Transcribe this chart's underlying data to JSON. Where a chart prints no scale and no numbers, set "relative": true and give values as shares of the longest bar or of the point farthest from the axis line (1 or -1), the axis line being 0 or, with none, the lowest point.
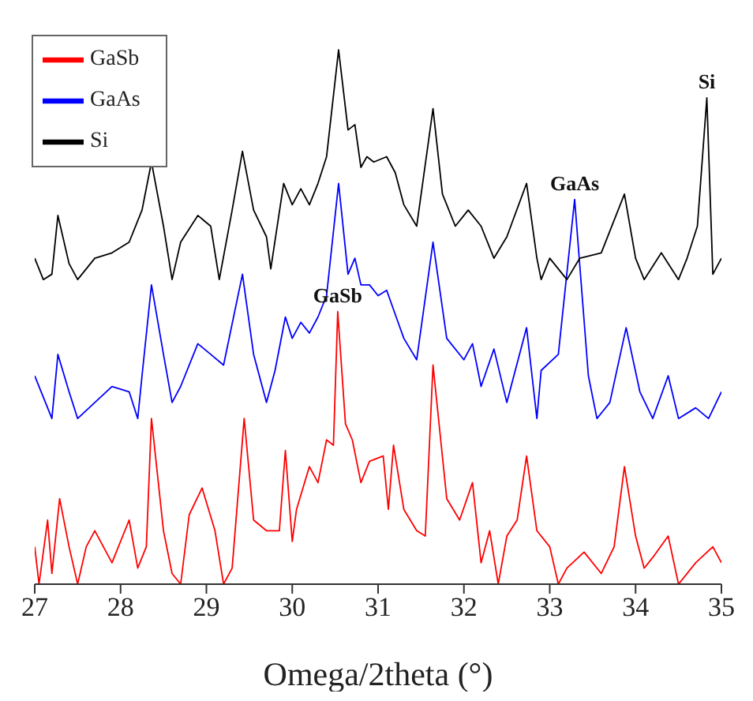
{
  "chart_data": {
    "type": "line",
    "relative": true,
    "xlabel": "Omega/2theta (°)",
    "xlim": [
      27,
      35
    ],
    "xticks": [
      27,
      28,
      29,
      30,
      31,
      32,
      33,
      34,
      35
    ],
    "legend": "top left",
    "grid": false,
    "marker": "none",
    "line_style": "solid",
    "annotations": [
      {
        "text": "GaSb",
        "x": 30.53,
        "y": 0.51
      },
      {
        "text": "GaAs",
        "x": 33.29,
        "y": 0.72
      },
      {
        "text": "Si",
        "x": 34.83,
        "y": 0.91
      }
    ],
    "series": [
      {
        "name": "GaSb",
        "color": "#ff0000",
        "x": [
          27.0,
          27.05,
          27.15,
          27.2,
          27.29,
          27.4,
          27.5,
          27.6,
          27.7,
          27.9,
          28.1,
          28.2,
          28.3,
          28.36,
          28.5,
          28.6,
          28.7,
          28.8,
          28.95,
          29.1,
          29.2,
          29.3,
          29.44,
          29.55,
          29.7,
          29.85,
          29.92,
          30.0,
          30.05,
          30.2,
          30.3,
          30.4,
          30.48,
          30.53,
          30.62,
          30.7,
          30.8,
          30.9,
          31.06,
          31.12,
          31.18,
          31.3,
          31.45,
          31.55,
          31.64,
          31.8,
          31.95,
          32.1,
          32.2,
          32.3,
          32.4,
          32.5,
          32.62,
          32.73,
          32.85,
          33.0,
          33.1,
          33.2,
          33.4,
          33.6,
          33.75,
          33.87,
          34.0,
          34.1,
          34.2,
          34.38,
          34.5,
          34.7,
          34.9,
          35.0
        ],
        "values": [
          0.07,
          0.0,
          0.12,
          0.02,
          0.16,
          0.07,
          0.0,
          0.07,
          0.1,
          0.04,
          0.12,
          0.03,
          0.07,
          0.31,
          0.1,
          0.02,
          0.0,
          0.13,
          0.18,
          0.1,
          0.0,
          0.03,
          0.31,
          0.12,
          0.1,
          0.1,
          0.25,
          0.08,
          0.14,
          0.22,
          0.19,
          0.27,
          0.26,
          0.51,
          0.3,
          0.27,
          0.19,
          0.23,
          0.24,
          0.14,
          0.26,
          0.14,
          0.1,
          0.09,
          0.41,
          0.16,
          0.12,
          0.19,
          0.04,
          0.1,
          0.0,
          0.09,
          0.12,
          0.24,
          0.1,
          0.07,
          0.0,
          0.03,
          0.06,
          0.02,
          0.07,
          0.22,
          0.09,
          0.03,
          0.05,
          0.09,
          0.0,
          0.04,
          0.07,
          0.04
        ]
      },
      {
        "name": "GaAs",
        "color": "#0000ff",
        "x": [
          27.0,
          27.1,
          27.2,
          27.27,
          27.4,
          27.5,
          27.7,
          27.9,
          28.1,
          28.2,
          28.25,
          28.36,
          28.5,
          28.6,
          28.7,
          28.9,
          29.05,
          29.2,
          29.42,
          29.55,
          29.7,
          29.8,
          29.92,
          30.0,
          30.1,
          30.2,
          30.3,
          30.4,
          30.54,
          30.65,
          30.73,
          30.8,
          30.9,
          31.0,
          31.1,
          31.3,
          31.45,
          31.64,
          31.8,
          32.0,
          32.1,
          32.2,
          32.35,
          32.5,
          32.73,
          32.85,
          32.9,
          33.1,
          33.29,
          33.45,
          33.55,
          33.7,
          33.89,
          34.05,
          34.2,
          34.38,
          34.5,
          34.7,
          34.85,
          35.0
        ],
        "values": [
          0.39,
          0.35,
          0.31,
          0.43,
          0.36,
          0.31,
          0.34,
          0.37,
          0.36,
          0.31,
          0.39,
          0.56,
          0.43,
          0.34,
          0.37,
          0.45,
          0.43,
          0.41,
          0.58,
          0.43,
          0.34,
          0.4,
          0.5,
          0.46,
          0.49,
          0.47,
          0.5,
          0.54,
          0.75,
          0.58,
          0.61,
          0.56,
          0.56,
          0.54,
          0.55,
          0.46,
          0.42,
          0.64,
          0.46,
          0.42,
          0.45,
          0.37,
          0.44,
          0.34,
          0.48,
          0.31,
          0.4,
          0.43,
          0.72,
          0.39,
          0.31,
          0.34,
          0.48,
          0.36,
          0.31,
          0.39,
          0.31,
          0.33,
          0.31,
          0.36
        ]
      },
      {
        "name": "Si",
        "color": "#000000",
        "x": [
          27.0,
          27.1,
          27.2,
          27.27,
          27.4,
          27.5,
          27.7,
          27.9,
          28.1,
          28.25,
          28.36,
          28.5,
          28.6,
          28.7,
          28.9,
          29.05,
          29.15,
          29.3,
          29.42,
          29.55,
          29.7,
          29.75,
          29.9,
          30.0,
          30.1,
          30.2,
          30.3,
          30.4,
          30.54,
          30.65,
          30.73,
          30.8,
          30.87,
          30.95,
          31.1,
          31.2,
          31.3,
          31.45,
          31.64,
          31.75,
          31.9,
          32.05,
          32.2,
          32.35,
          32.5,
          32.73,
          32.85,
          32.9,
          33.0,
          33.2,
          33.35,
          33.6,
          33.87,
          34.0,
          34.1,
          34.3,
          34.5,
          34.6,
          34.72,
          34.83,
          34.9,
          35.0
        ],
        "values": [
          0.61,
          0.57,
          0.58,
          0.69,
          0.6,
          0.57,
          0.61,
          0.62,
          0.64,
          0.7,
          0.79,
          0.67,
          0.57,
          0.64,
          0.69,
          0.67,
          0.57,
          0.7,
          0.81,
          0.7,
          0.65,
          0.59,
          0.75,
          0.71,
          0.74,
          0.71,
          0.75,
          0.8,
          1.0,
          0.85,
          0.86,
          0.78,
          0.8,
          0.79,
          0.8,
          0.77,
          0.71,
          0.67,
          0.89,
          0.73,
          0.67,
          0.7,
          0.67,
          0.61,
          0.65,
          0.75,
          0.61,
          0.57,
          0.61,
          0.57,
          0.61,
          0.62,
          0.73,
          0.61,
          0.57,
          0.62,
          0.57,
          0.61,
          0.67,
          0.91,
          0.58,
          0.61
        ]
      }
    ]
  }
}
